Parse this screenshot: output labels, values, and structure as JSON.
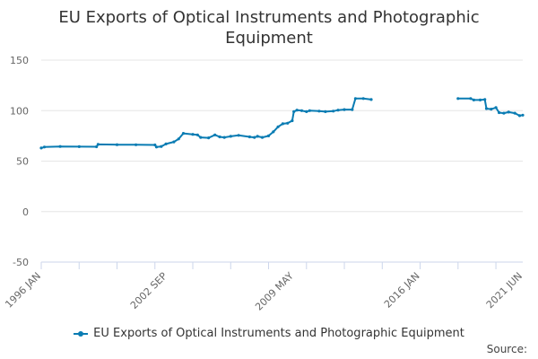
{
  "colors": {
    "series": "#0a7cb3",
    "grid": "#e6e6e6",
    "axis": "#ccd6eb",
    "text": "#666666"
  },
  "chart_data": {
    "type": "line",
    "title_lines": [
      "EU Exports of Optical Instruments and Photographic",
      "Equipment"
    ],
    "xlabel": "",
    "ylabel": "",
    "ylim": [
      -50,
      150
    ],
    "yticks": [
      -50,
      0,
      50,
      100,
      150
    ],
    "xlim": [
      "1996-01",
      "2021-06"
    ],
    "xtick_labels": [
      {
        "date": "1996-01",
        "label": "1996 JAN"
      },
      {
        "date": "2002-09",
        "label": "2002 SEP"
      },
      {
        "date": "2009-05",
        "label": "2009 MAY"
      },
      {
        "date": "2016-01",
        "label": "2016 JAN"
      },
      {
        "date": "2021-06",
        "label": "2021 JUN"
      }
    ],
    "grid": true,
    "legend_position": "bottom-center",
    "legend_label": "EU Exports of Optical Instruments and Photographic Equipment",
    "source_label": "Source:",
    "series": [
      {
        "name": "EU Exports of Optical Instruments and Photographic Equipment",
        "segments": [
          [
            [
              "1996-01",
              63
            ],
            [
              "1996-03",
              64
            ],
            [
              "1997-01",
              64.5
            ],
            [
              "1998-01",
              64.3
            ],
            [
              "1998-12",
              64.2
            ],
            [
              "1999-01",
              66.5
            ],
            [
              "2000-01",
              66.3
            ],
            [
              "2001-01",
              66.2
            ],
            [
              "2002-01",
              66.0
            ],
            [
              "2002-02",
              64
            ],
            [
              "2002-05",
              64.5
            ],
            [
              "2002-08",
              67
            ],
            [
              "2003-01",
              69
            ],
            [
              "2003-04",
              72
            ],
            [
              "2003-07",
              77.5
            ],
            [
              "2004-01",
              76.5
            ],
            [
              "2004-04",
              76
            ],
            [
              "2004-06",
              73.5
            ],
            [
              "2004-11",
              73
            ],
            [
              "2005-03",
              76
            ],
            [
              "2005-06",
              74
            ],
            [
              "2005-09",
              73.5
            ],
            [
              "2006-01",
              74.5
            ],
            [
              "2006-06",
              75.5
            ],
            [
              "2007-01",
              74
            ],
            [
              "2007-04",
              73.5
            ],
            [
              "2007-06",
              74.5
            ],
            [
              "2007-09",
              73.5
            ],
            [
              "2008-01",
              75
            ],
            [
              "2008-04",
              79
            ],
            [
              "2008-07",
              84
            ],
            [
              "2008-10",
              87
            ],
            [
              "2009-01",
              87.5
            ],
            [
              "2009-04",
              90
            ],
            [
              "2009-05",
              99
            ],
            [
              "2009-07",
              100.5
            ],
            [
              "2009-10",
              100
            ],
            [
              "2010-01",
              99
            ],
            [
              "2010-03",
              100
            ],
            [
              "2010-09",
              99.5
            ],
            [
              "2011-01",
              99
            ],
            [
              "2011-06",
              99.5
            ],
            [
              "2011-09",
              100.5
            ],
            [
              "2012-01",
              101
            ],
            [
              "2012-06",
              101
            ],
            [
              "2012-08",
              112
            ],
            [
              "2013-01",
              112
            ],
            [
              "2013-06",
              111
            ]
          ],
          [
            [
              "2018-01",
              112
            ],
            [
              "2018-09",
              112
            ],
            [
              "2018-11",
              110.5
            ],
            [
              "2019-03",
              110.5
            ],
            [
              "2019-06",
              111
            ],
            [
              "2019-07",
              102
            ],
            [
              "2019-10",
              101.5
            ],
            [
              "2020-01",
              103
            ],
            [
              "2020-03",
              98
            ],
            [
              "2020-06",
              97.5
            ],
            [
              "2020-09",
              98.5
            ],
            [
              "2021-01",
              97.5
            ],
            [
              "2021-04",
              95
            ],
            [
              "2021-06",
              95.5
            ]
          ]
        ]
      }
    ]
  }
}
